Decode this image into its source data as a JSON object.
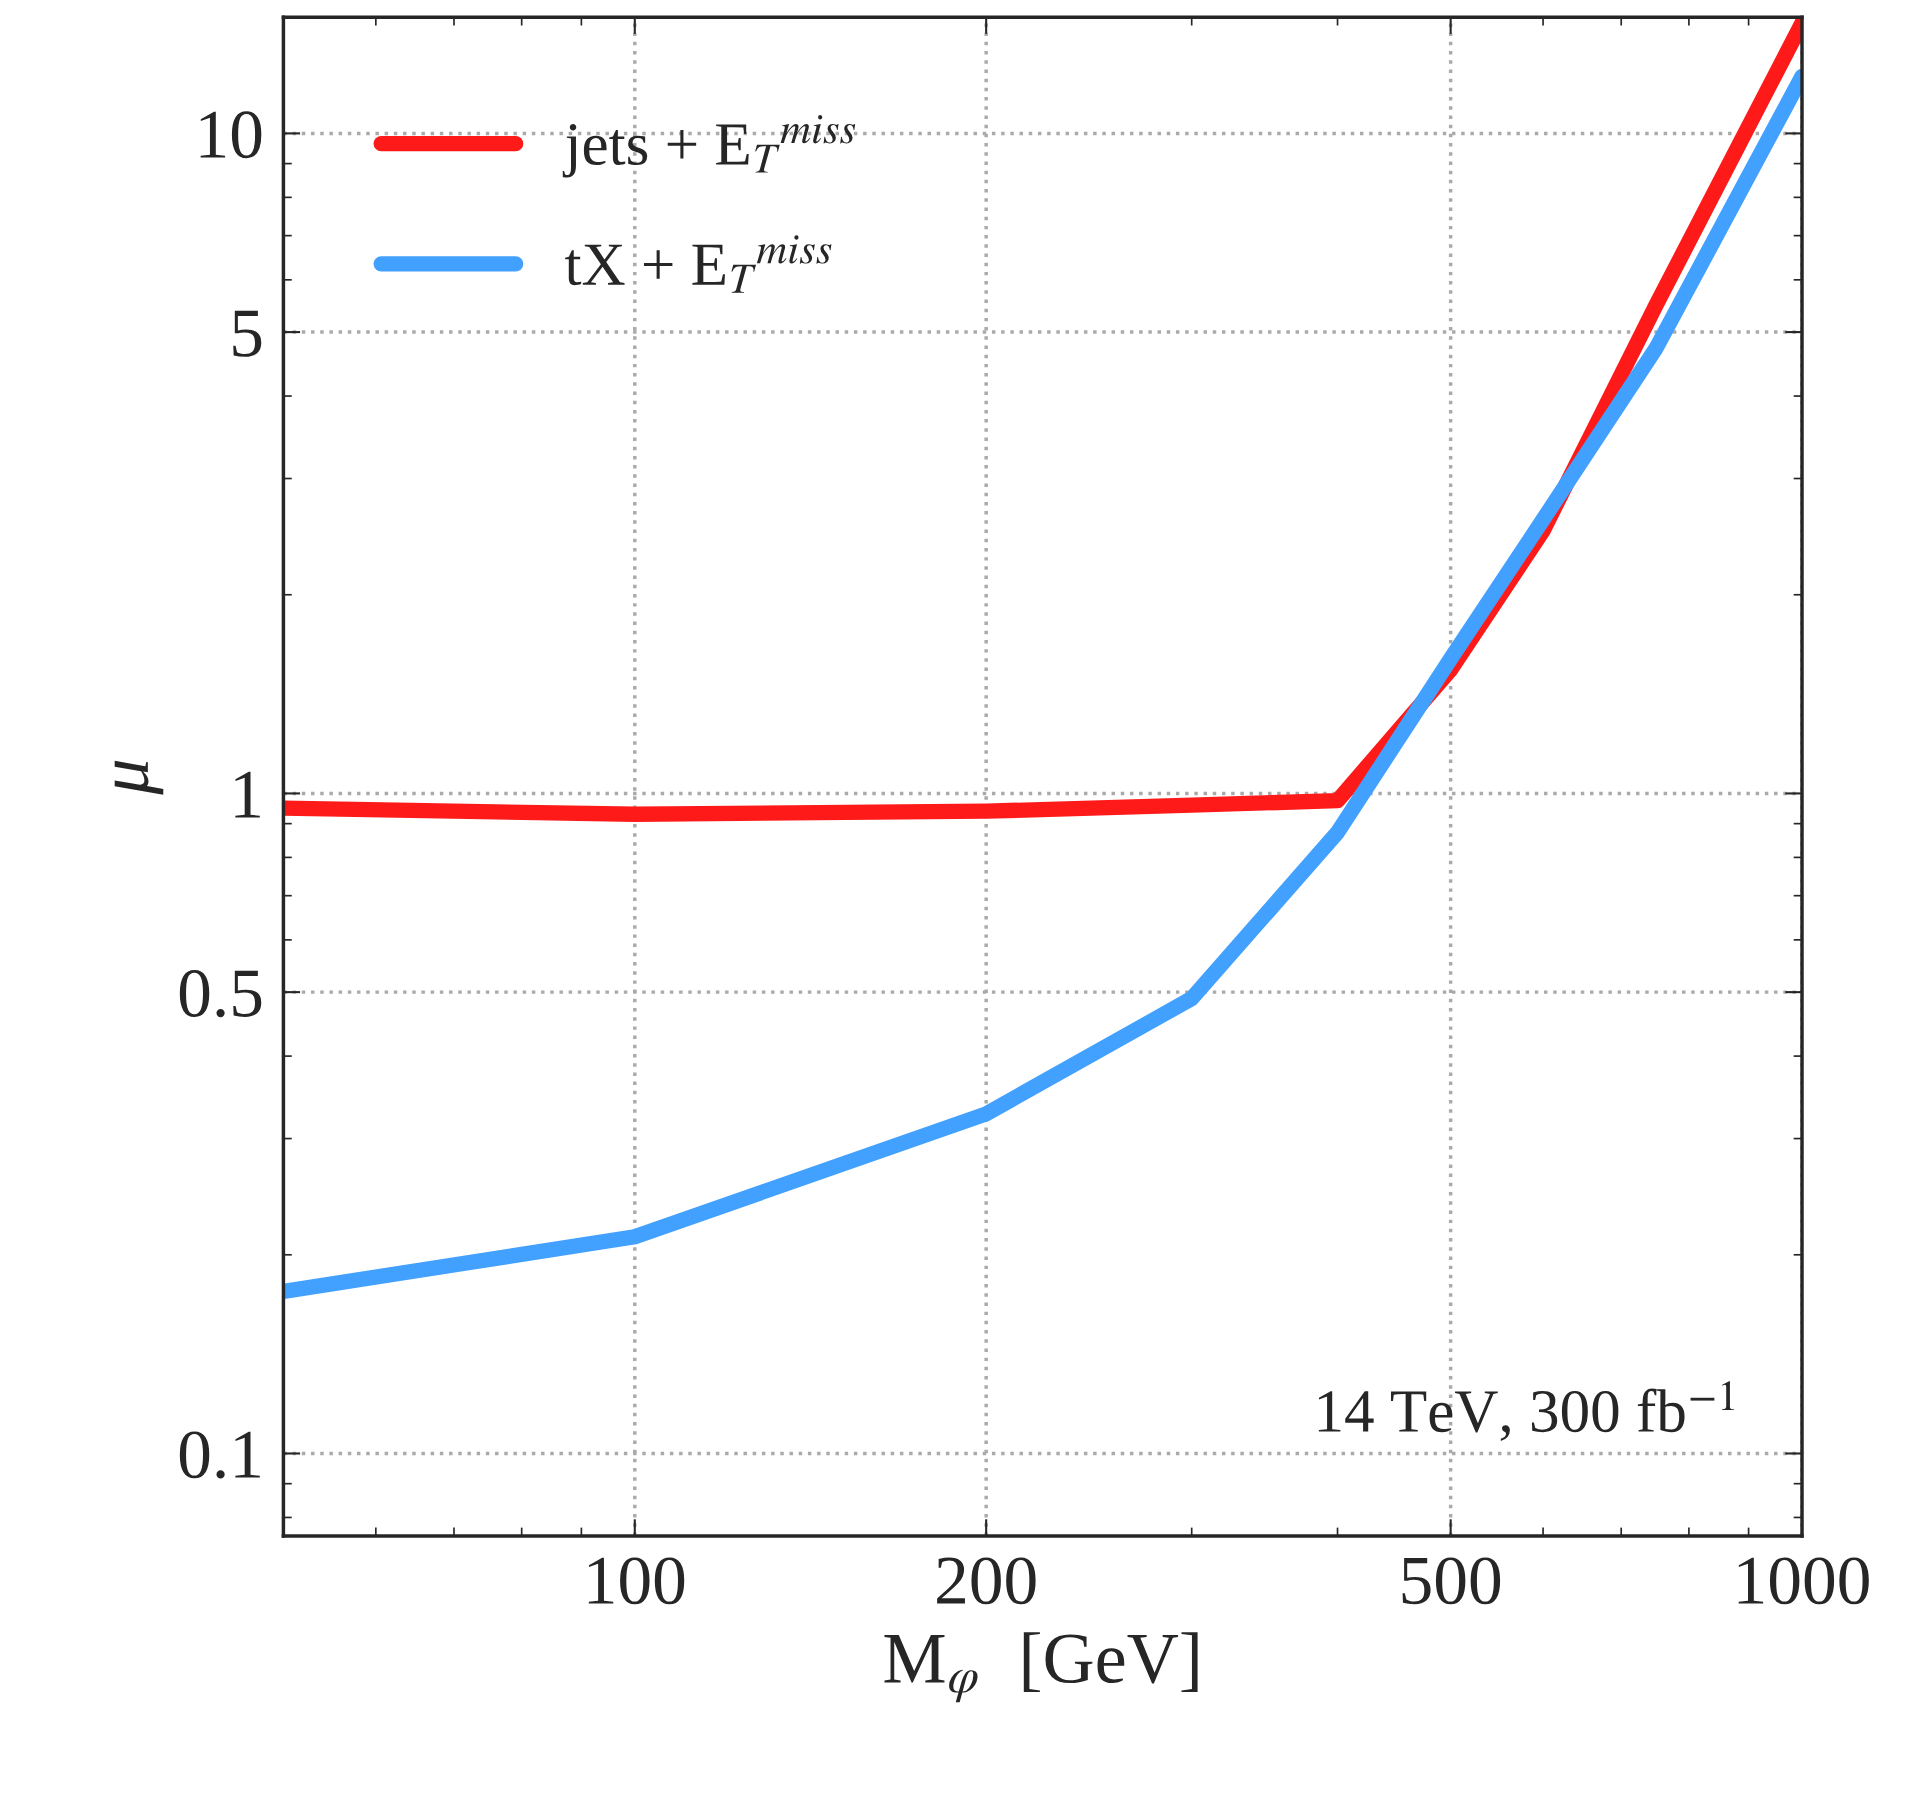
{
  "chart_data": {
    "type": "line",
    "xlabel": "M$_{φ}$  [GeV]",
    "ylabel": "μ",
    "log": "xy",
    "xlim": [
      50,
      1000
    ],
    "ylim": [
      0.075,
      15
    ],
    "xticks": [
      100,
      200,
      500,
      1000
    ],
    "yticks": [
      0.1,
      0.5,
      1,
      5,
      10
    ],
    "grid": true,
    "legend": "top left",
    "line_style": "solid",
    "marker": "none",
    "annotations": [
      "14 TeV, 300 fb$^{−1}$"
    ],
    "series": [
      {
        "name": "jets + E$_{T}$$^{miss}$",
        "color": "#ff1a1a",
        "x": [
          50,
          100,
          200,
          300,
          400,
          500,
          600,
          750,
          1000
        ],
        "values": [
          0.95,
          0.93,
          0.94,
          0.96,
          0.975,
          1.54,
          2.5,
          5.5,
          14.7
        ]
      },
      {
        "name": "tX + E$_{T}$$^{miss}$",
        "color": "#42a0ff",
        "x": [
          50,
          100,
          200,
          300,
          400,
          500,
          600,
          750,
          1000
        ],
        "values": [
          0.176,
          0.213,
          0.327,
          0.489,
          0.873,
          1.6,
          2.6,
          4.73,
          12.2
        ]
      }
    ]
  }
}
